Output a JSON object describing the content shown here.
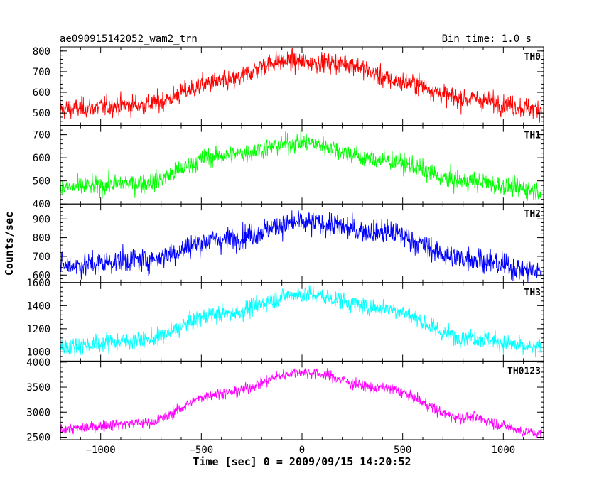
{
  "chart_data": {
    "type": "line",
    "title_left": "ae090915142052_wam2_trn",
    "title_right": "Bin time: 1.0 s",
    "xlabel": "Time [sec] 0 = 2009/09/15 14:20:52",
    "ylabel": "Counts/sec",
    "xlim": [
      -1200,
      1200
    ],
    "x_ticks": [
      -1000,
      -500,
      0,
      500,
      1000
    ],
    "x_range": [
      -1200,
      1190
    ],
    "bin_time": 1.0,
    "grid": false,
    "panels": [
      {
        "name": "TH0",
        "color": "#ff0000",
        "ylim": [
          440,
          820
        ],
        "y_ticks": [
          500,
          600,
          700,
          800
        ],
        "profile": {
          "x": [
            -1200,
            -800,
            -400,
            -100,
            200,
            500,
            800,
            1190
          ],
          "y": [
            520,
            540,
            650,
            750,
            740,
            650,
            570,
            520
          ]
        },
        "noise": 35
      },
      {
        "name": "TH1",
        "color": "#00ff00",
        "ylim": [
          400,
          740
        ],
        "y_ticks": [
          400,
          500,
          600,
          700
        ],
        "profile": {
          "x": [
            -1200,
            -800,
            -400,
            0,
            400,
            800,
            1190
          ],
          "y": [
            470,
            490,
            610,
            665,
            590,
            500,
            460
          ]
        },
        "noise": 30
      },
      {
        "name": "TH2",
        "color": "#0000ff",
        "ylim": [
          560,
          980
        ],
        "y_ticks": [
          600,
          700,
          800,
          900
        ],
        "profile": {
          "x": [
            -1200,
            -800,
            -400,
            0,
            400,
            800,
            1190
          ],
          "y": [
            650,
            680,
            790,
            880,
            830,
            690,
            620
          ]
        },
        "noise": 45
      },
      {
        "name": "TH3",
        "color": "#00ffff",
        "ylim": [
          920,
          1600
        ],
        "y_ticks": [
          1000,
          1200,
          1400,
          1600
        ],
        "profile": {
          "x": [
            -1200,
            -800,
            -400,
            0,
            400,
            800,
            1190
          ],
          "y": [
            1050,
            1100,
            1330,
            1500,
            1380,
            1130,
            1030
          ]
        },
        "noise": 55
      },
      {
        "name": "TH0123",
        "color": "#ff00ff",
        "ylim": [
          2450,
          4020
        ],
        "y_ticks": [
          2500,
          3000,
          3500,
          4000
        ],
        "profile": {
          "x": [
            -1200,
            -800,
            -400,
            0,
            400,
            800,
            1190
          ],
          "y": [
            2660,
            2780,
            3380,
            3800,
            3480,
            2900,
            2580
          ]
        },
        "noise": 80
      }
    ]
  }
}
